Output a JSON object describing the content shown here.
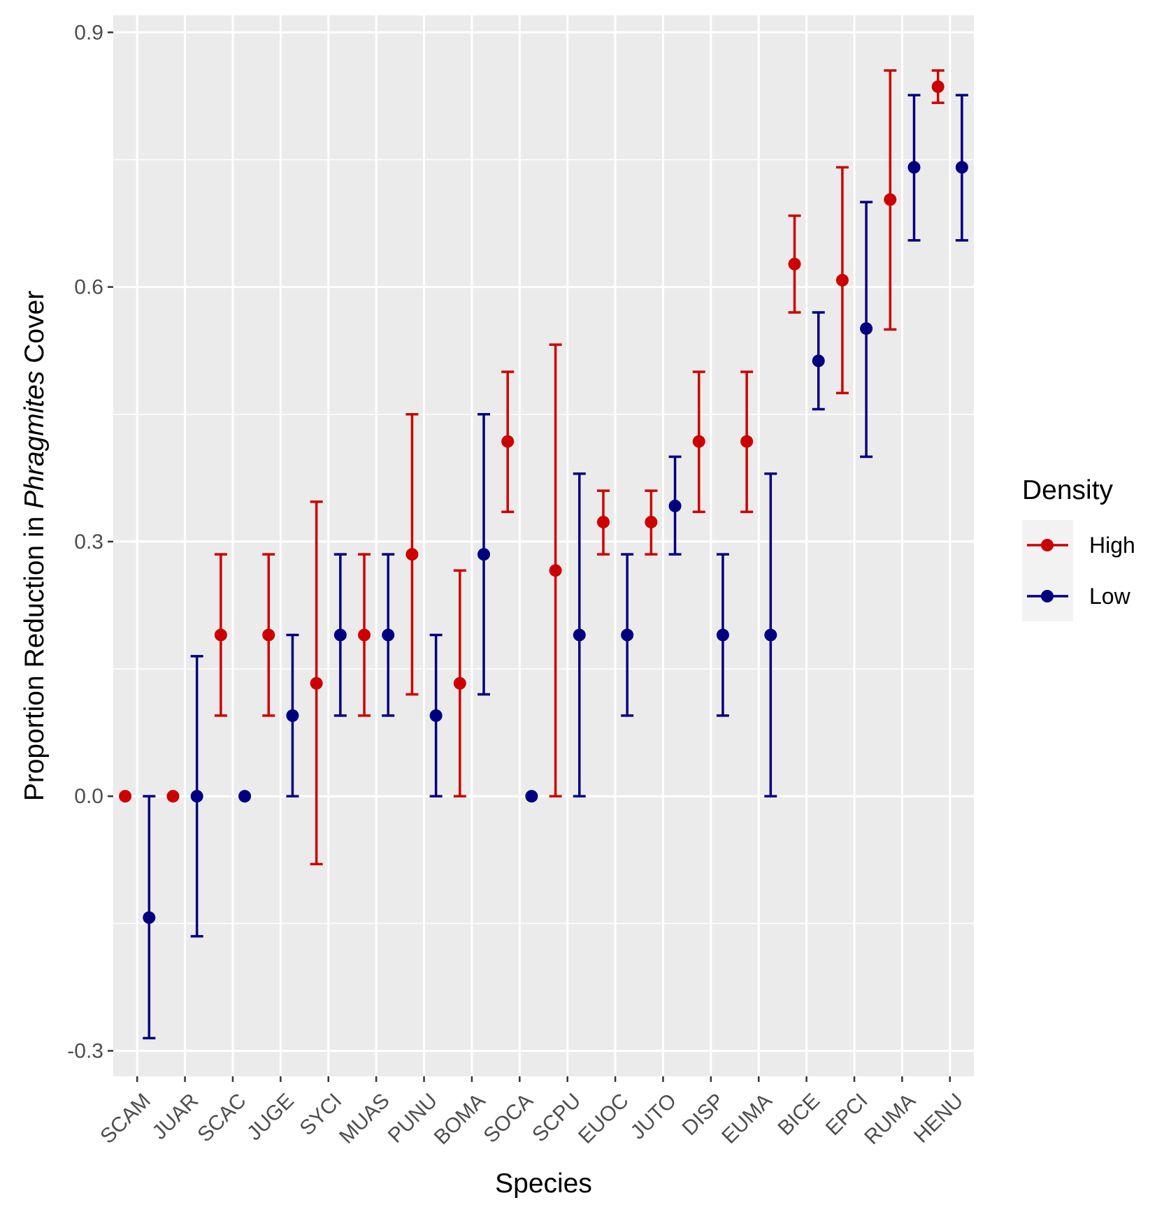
{
  "chart_data": {
    "type": "scatter",
    "subtype": "point-with-errorbars (dodged)",
    "title": "",
    "xlabel": "Species",
    "ylabel": {
      "prefix": "Proportion Reduction in ",
      "italic": "Phragmites",
      "suffix": " Cover"
    },
    "ylim": [
      -0.33,
      0.92
    ],
    "y_ticks": [
      -0.3,
      0.0,
      0.3,
      0.6,
      0.9
    ],
    "y_tick_labels": [
      "-0.3",
      "0.0",
      "0.3",
      "0.6",
      "0.9"
    ],
    "grid": true,
    "legend": {
      "title": "Density",
      "position": "right"
    },
    "categories": [
      "SCAM",
      "JUAR",
      "SCAC",
      "JUGE",
      "SYCI",
      "MUAS",
      "PUNU",
      "BOMA",
      "SOCA",
      "SCPU",
      "EUOC",
      "JUTO",
      "DISP",
      "EUMA",
      "BICE",
      "EPCI",
      "RUMA",
      "HENU"
    ],
    "series": [
      {
        "name": "High",
        "color": "#cc0000",
        "values": [
          0.0,
          0.0,
          0.19,
          0.19,
          0.133,
          0.19,
          0.285,
          0.133,
          0.418,
          0.266,
          0.323,
          0.323,
          0.418,
          0.418,
          0.627,
          0.608,
          0.703,
          0.836
        ],
        "lower": [
          null,
          null,
          0.095,
          0.095,
          -0.08,
          0.095,
          0.12,
          0.0,
          0.335,
          0.0,
          0.285,
          0.285,
          0.335,
          0.335,
          0.57,
          0.475,
          0.55,
          0.817
        ],
        "upper": [
          null,
          null,
          0.285,
          0.285,
          0.347,
          0.285,
          0.45,
          0.266,
          0.5,
          0.532,
          0.36,
          0.36,
          0.5,
          0.5,
          0.684,
          0.741,
          0.855,
          0.855
        ]
      },
      {
        "name": "Low",
        "color": "#000080",
        "values": [
          -0.143,
          0.0,
          0.0,
          0.095,
          0.19,
          0.19,
          0.095,
          0.285,
          0.0,
          0.19,
          0.19,
          0.342,
          0.19,
          0.19,
          0.513,
          0.551,
          0.741,
          0.741
        ],
        "lower": [
          -0.285,
          -0.165,
          null,
          0.0,
          0.095,
          0.095,
          0.0,
          0.12,
          null,
          0.0,
          0.095,
          0.285,
          0.095,
          0.0,
          0.456,
          0.4,
          0.655,
          0.655
        ],
        "upper": [
          0.0,
          0.165,
          null,
          0.19,
          0.285,
          0.285,
          0.19,
          0.45,
          null,
          0.38,
          0.285,
          0.4,
          0.285,
          0.38,
          0.57,
          0.7,
          0.826,
          0.826
        ]
      }
    ]
  }
}
